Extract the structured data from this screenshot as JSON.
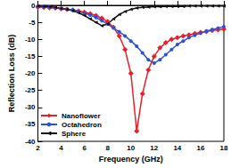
{
  "chart_data": {
    "type": "line",
    "x_label": "Frequency (GHz)",
    "y_label": "Reflection Loss (dB)",
    "x": [
      2,
      2.5,
      3,
      3.5,
      4,
      4.5,
      5,
      5.5,
      6,
      6.5,
      7,
      7.5,
      8,
      8.5,
      9,
      9.5,
      10,
      10.5,
      11,
      11.5,
      12,
      12.5,
      13,
      13.5,
      14,
      14.5,
      15,
      15.5,
      16,
      16.5,
      17,
      17.5,
      18
    ],
    "series": [
      {
        "name": "Nanoflower",
        "color": "#e8202a",
        "marker": "diamond",
        "values": [
          -0.5,
          -0.6,
          -0.7,
          -0.8,
          -1.0,
          -1.2,
          -1.4,
          -1.7,
          -2.0,
          -2.5,
          -3.0,
          -3.8,
          -4.8,
          -6.5,
          -9.0,
          -13,
          -20,
          -37,
          -26,
          -19,
          -15,
          -12.5,
          -11,
          -10,
          -9.5,
          -9,
          -8.7,
          -8.3,
          -8,
          -7.7,
          -7.4,
          -7.2,
          -7
        ]
      },
      {
        "name": "Octahedron",
        "color": "#2a52d8",
        "marker": "circle",
        "values": [
          -0.3,
          -0.4,
          -0.5,
          -0.7,
          -0.9,
          -1.1,
          -1.4,
          -1.8,
          -2.3,
          -2.9,
          -3.6,
          -4.5,
          -5.5,
          -6.6,
          -7.8,
          -9,
          -10.5,
          -12,
          -14,
          -16,
          -17,
          -16,
          -14.5,
          -13,
          -11.5,
          -10.5,
          -9.5,
          -8.8,
          -8.2,
          -7.6,
          -7.1,
          -6.7,
          -6.3
        ]
      },
      {
        "name": "Sphere",
        "color": "#111111",
        "marker": "triangle-left",
        "values": [
          -0.2,
          -0.3,
          -0.4,
          -0.6,
          -0.9,
          -1.2,
          -1.6,
          -2.2,
          -3,
          -4,
          -5,
          -6,
          -5.5,
          -4,
          -2.7,
          -1.8,
          -1.2,
          -0.8,
          -0.6,
          -0.5,
          -0.4,
          -0.4,
          -0.3,
          -0.3,
          -0.3,
          -0.3,
          -0.2,
          -0.2,
          -0.2,
          -0.2,
          -0.2,
          -0.2,
          -0.2
        ]
      }
    ],
    "xlim": [
      2,
      18
    ],
    "xticks": [
      2,
      4,
      6,
      8,
      10,
      12,
      14,
      16,
      18
    ],
    "ylim": [
      -40,
      0
    ],
    "yticks": [
      -40,
      -35,
      -30,
      -25,
      -20,
      -15,
      -10,
      -5,
      0
    ],
    "legend": "lower left",
    "grid": false
  }
}
